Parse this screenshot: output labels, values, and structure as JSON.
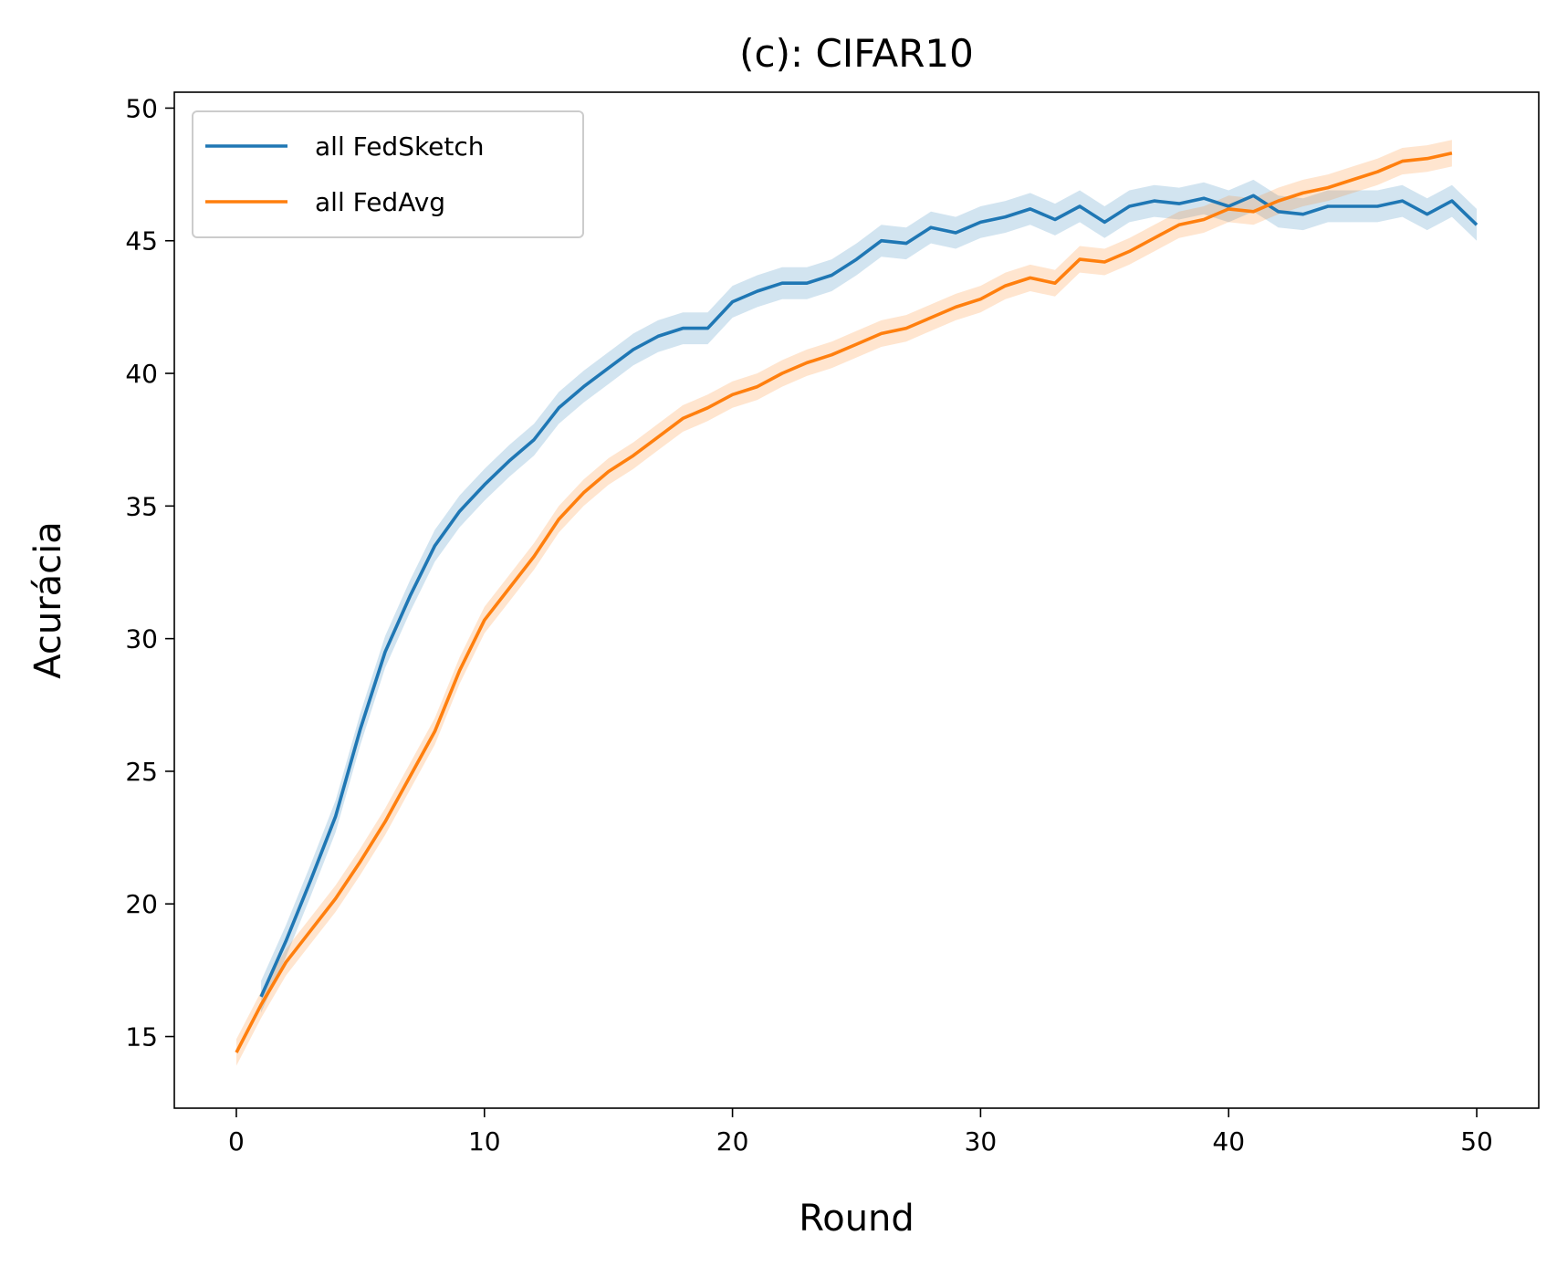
{
  "chart_data": {
    "type": "line",
    "title": "(c): CIFAR10",
    "xlabel": "Round",
    "ylabel": "Acurácia",
    "xlim": [
      -2.5,
      52.5
    ],
    "ylim": [
      12.3,
      50.6
    ],
    "xticks": [
      0,
      10,
      20,
      30,
      40,
      50
    ],
    "yticks": [
      15,
      20,
      25,
      30,
      35,
      40,
      45,
      50
    ],
    "grid": false,
    "legend": "top-left",
    "series": [
      {
        "name": "all FedSketch",
        "color": "#1f77b4",
        "band": 0.6,
        "x": [
          1,
          2,
          3,
          4,
          5,
          6,
          7,
          8,
          9,
          10,
          11,
          12,
          13,
          14,
          15,
          16,
          17,
          18,
          19,
          20,
          21,
          22,
          23,
          24,
          25,
          26,
          27,
          28,
          29,
          30,
          31,
          32,
          33,
          34,
          35,
          36,
          37,
          38,
          39,
          40,
          41,
          42,
          43,
          44,
          45,
          46,
          47,
          48,
          49,
          50
        ],
        "y": [
          16.5,
          18.6,
          20.9,
          23.3,
          26.6,
          29.5,
          31.6,
          33.5,
          34.8,
          35.8,
          36.7,
          37.5,
          38.7,
          39.5,
          40.2,
          40.9,
          41.4,
          41.7,
          41.7,
          42.7,
          43.1,
          43.4,
          43.4,
          43.7,
          44.3,
          45.0,
          44.9,
          45.5,
          45.3,
          45.7,
          45.9,
          46.2,
          45.8,
          46.3,
          45.7,
          46.3,
          46.5,
          46.4,
          46.6,
          46.3,
          46.7,
          46.1,
          46.0,
          46.3,
          46.3,
          46.3,
          46.5,
          46.0,
          46.5,
          45.6
        ]
      },
      {
        "name": "all FedAvg",
        "color": "#ff7f0e",
        "band": 0.5,
        "x": [
          0,
          1,
          2,
          3,
          4,
          5,
          6,
          7,
          8,
          9,
          10,
          11,
          12,
          13,
          14,
          15,
          16,
          17,
          18,
          19,
          20,
          21,
          22,
          23,
          24,
          25,
          26,
          27,
          28,
          29,
          30,
          31,
          32,
          33,
          34,
          35,
          36,
          37,
          38,
          39,
          40,
          41,
          42,
          43,
          44,
          45,
          46,
          47,
          48,
          49
        ],
        "y": [
          14.4,
          16.2,
          17.8,
          19.0,
          20.2,
          21.6,
          23.1,
          24.8,
          26.5,
          28.8,
          30.7,
          31.9,
          33.1,
          34.5,
          35.5,
          36.3,
          36.9,
          37.6,
          38.3,
          38.7,
          39.2,
          39.5,
          40.0,
          40.4,
          40.7,
          41.1,
          41.5,
          41.7,
          42.1,
          42.5,
          42.8,
          43.3,
          43.6,
          43.4,
          44.3,
          44.2,
          44.6,
          45.1,
          45.6,
          45.8,
          46.2,
          46.1,
          46.5,
          46.8,
          47.0,
          47.3,
          47.6,
          48.0,
          48.1,
          48.3
        ]
      }
    ]
  }
}
